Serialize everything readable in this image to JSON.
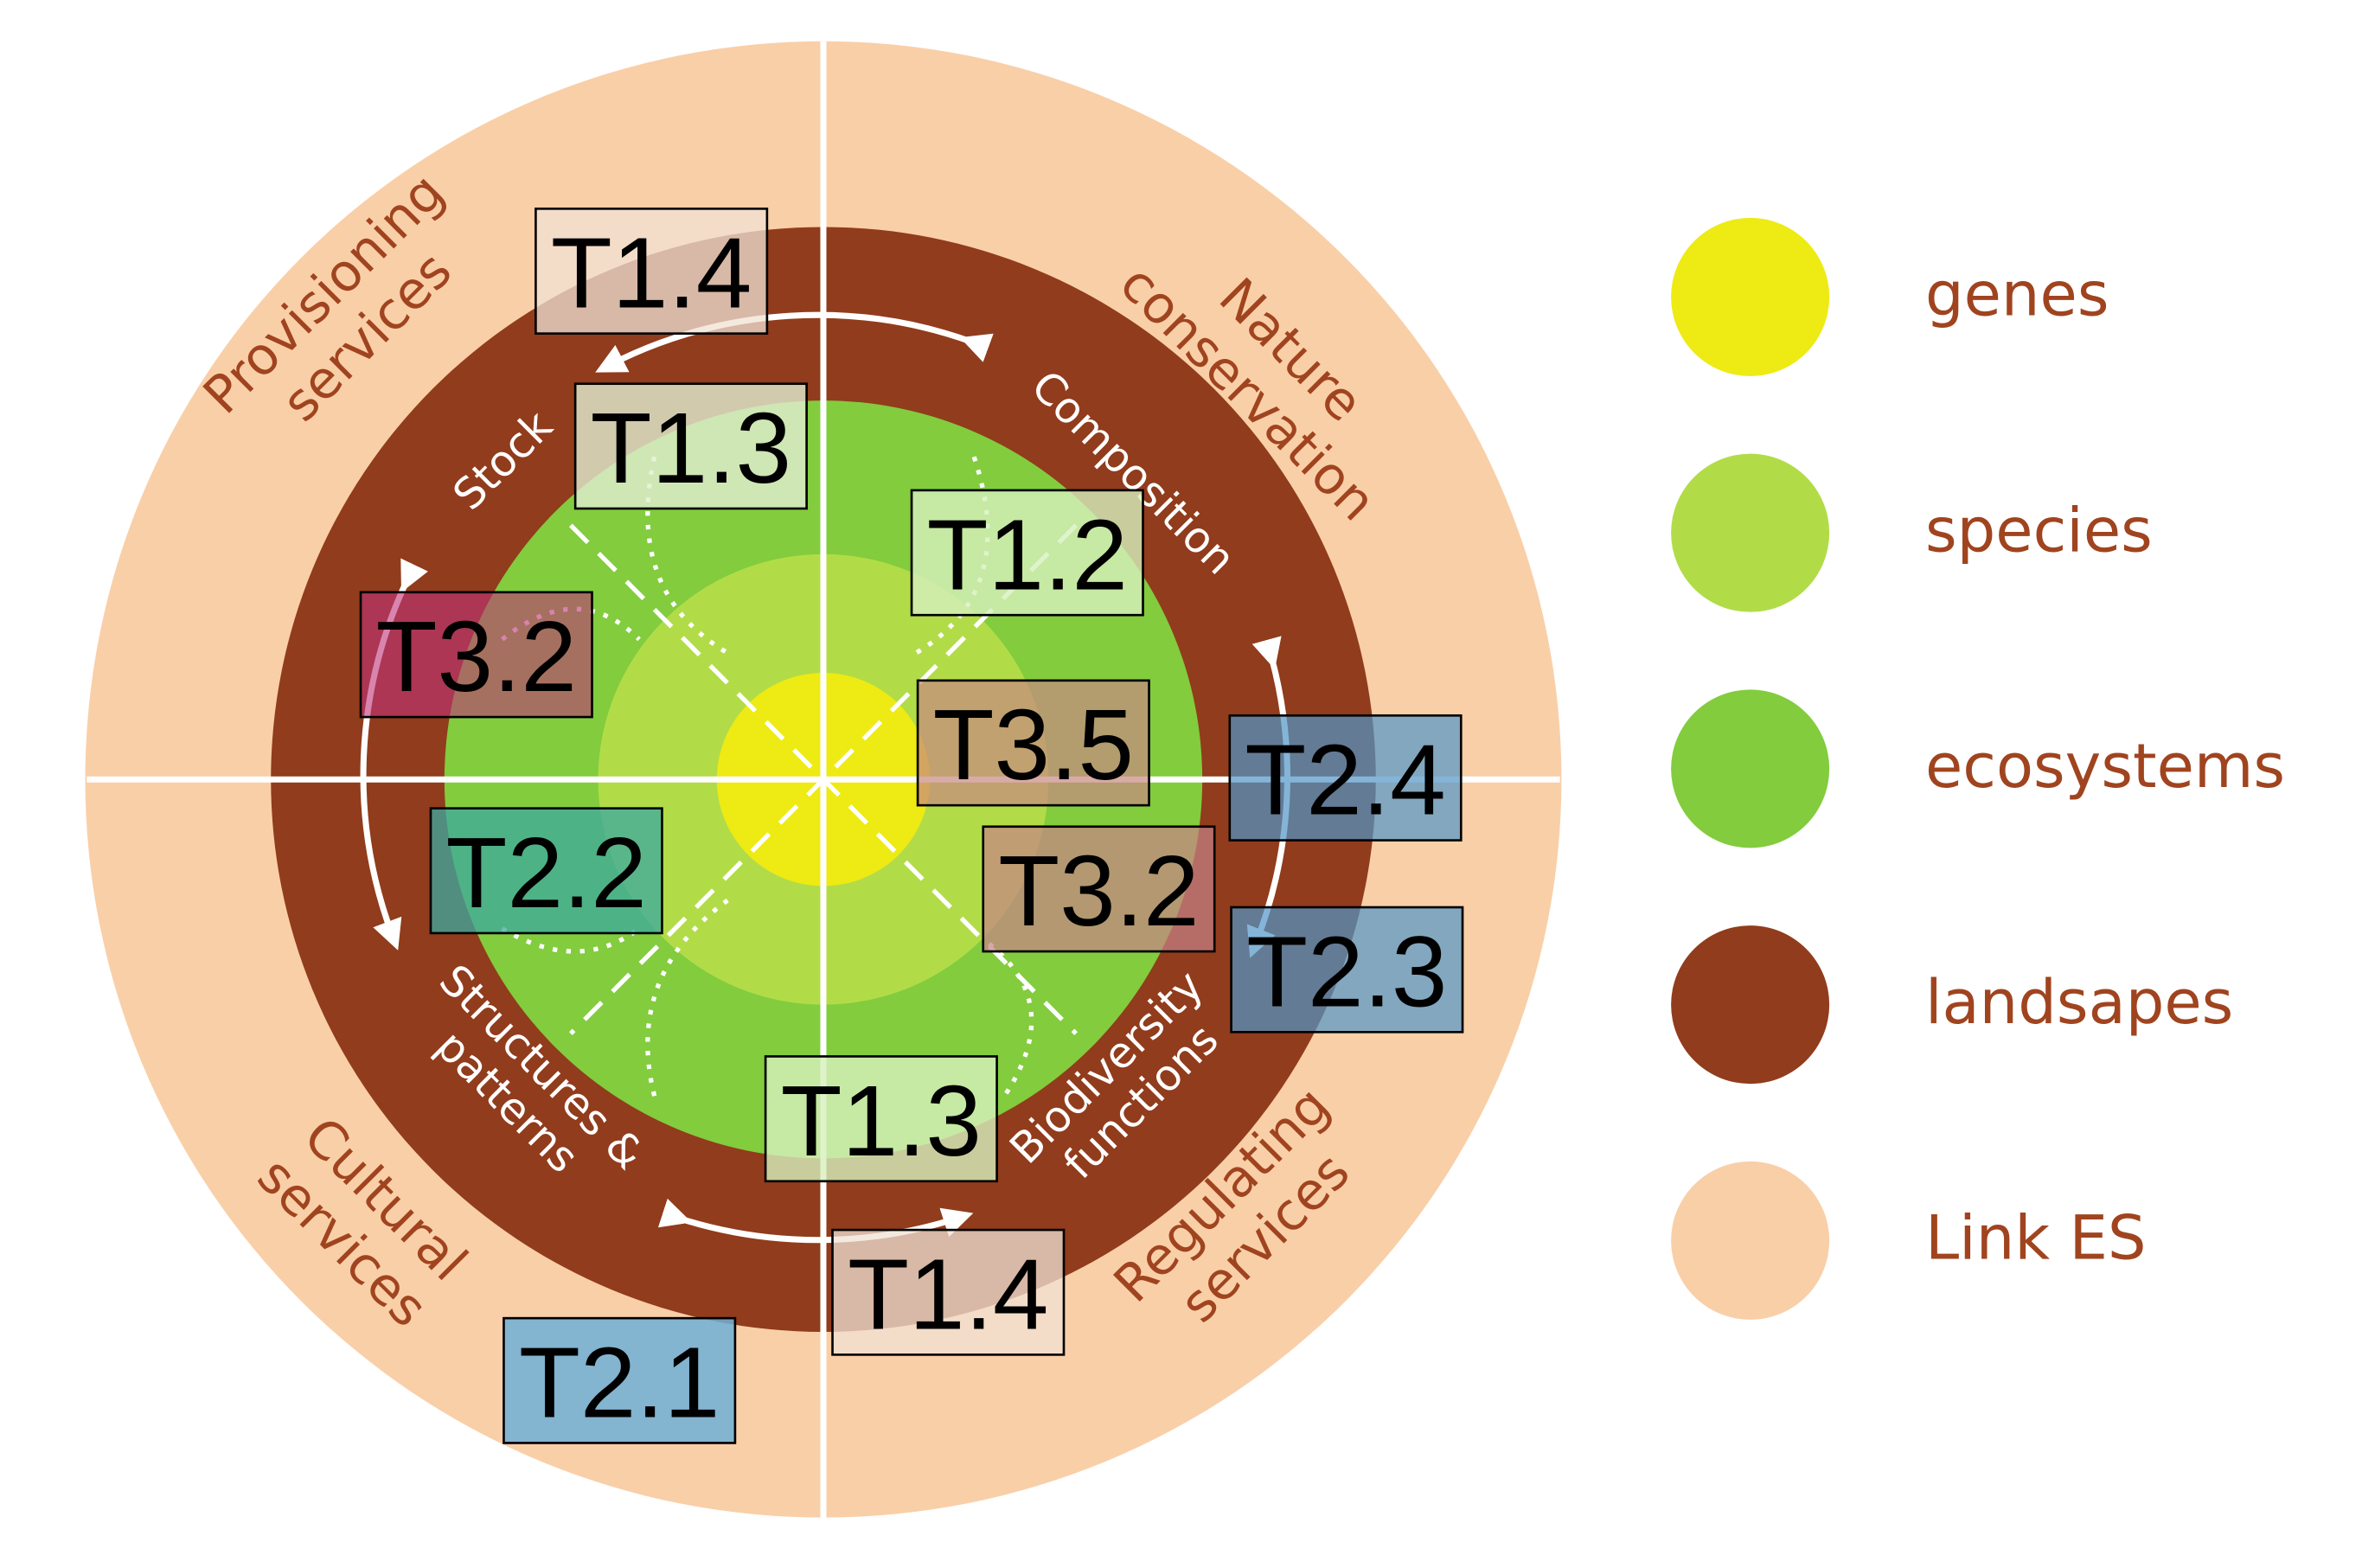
{
  "diagram": {
    "outer_labels": [
      {
        "lines": [
          "Provisioning",
          "services"
        ]
      },
      {
        "lines": [
          "Nature",
          "conservation"
        ]
      },
      {
        "lines": [
          "Cultural",
          "services"
        ]
      },
      {
        "lines": [
          "Regulating",
          "services"
        ]
      }
    ],
    "inner_labels": [
      {
        "lines": [
          "Stock"
        ]
      },
      {
        "lines": [
          "Composition"
        ]
      },
      {
        "lines": [
          "Structures &",
          "patterns"
        ]
      },
      {
        "lines": [
          "Biodiversity",
          "functions"
        ]
      }
    ],
    "tasks": [
      "T1.4",
      "T1.3",
      "T1.2",
      "T3.2",
      "T3.5",
      "T2.4",
      "T2.2",
      "T3.2",
      "T2.3",
      "T1.3",
      "T1.4",
      "T2.1"
    ],
    "legend": [
      "genes",
      "species",
      "ecosystems",
      "landsapes",
      "Link ES"
    ]
  }
}
